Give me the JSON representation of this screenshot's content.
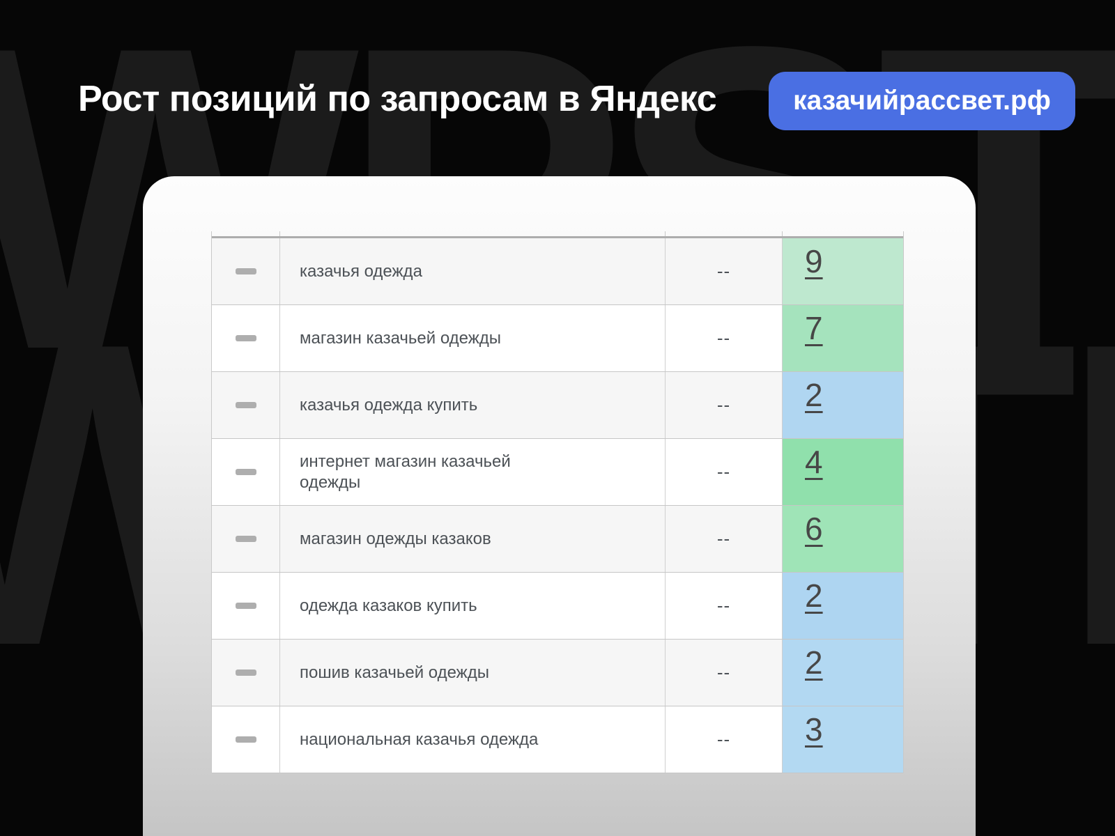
{
  "watermark": {
    "line1": "WPSTR",
    "line2": "WPSTR"
  },
  "header": {
    "title": "Рост позиций по запросам в Яндекс",
    "badge_label": "казачийрассвет.рф",
    "badge_color": "#4a6fe3"
  },
  "table": {
    "rows": [
      {
        "query": "казачья одежда",
        "previous": "--",
        "position": "9",
        "cell_color": "#bee8cf"
      },
      {
        "query": "магазин казачьей одежды",
        "previous": "--",
        "position": "7",
        "cell_color": "#a5e3bd"
      },
      {
        "query": "казачья одежда купить",
        "previous": "--",
        "position": "2",
        "cell_color": "#b0d6f1"
      },
      {
        "query": "интернет магазин казачьей одежды",
        "previous": "--",
        "position": "4",
        "cell_color": "#90e0ac"
      },
      {
        "query": "магазин одежды казаков",
        "previous": "--",
        "position": "6",
        "cell_color": "#9fe4b7"
      },
      {
        "query": "одежда казаков купить",
        "previous": "--",
        "position": "2",
        "cell_color": "#aed5f1"
      },
      {
        "query": "пошив казачьей одежды",
        "previous": "--",
        "position": "2",
        "cell_color": "#b2d8f2"
      },
      {
        "query": "национальная казачья одежда",
        "previous": "--",
        "position": "3",
        "cell_color": "#b3d9f2"
      }
    ]
  }
}
